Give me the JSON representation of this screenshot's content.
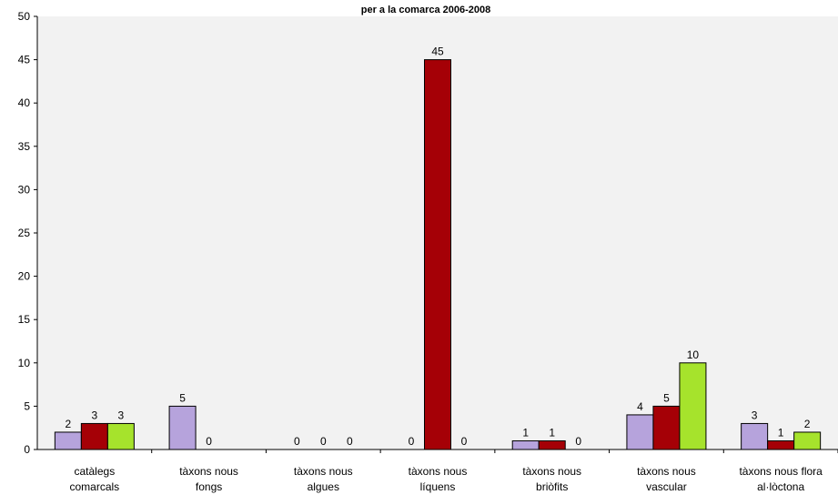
{
  "chart_data": {
    "type": "bar",
    "title": "per a la comarca 2006-2008",
    "xlabel": "",
    "ylabel": "",
    "ylim": [
      0,
      50
    ],
    "yticks": [
      0,
      5,
      10,
      15,
      20,
      25,
      30,
      35,
      40,
      45,
      50
    ],
    "grid": false,
    "legend": "none",
    "categories": [
      [
        "catàlegs",
        "comarcals"
      ],
      [
        "tàxons nous",
        "fongs"
      ],
      [
        "tàxons nous",
        "algues"
      ],
      [
        "tàxons nous",
        "líquens"
      ],
      [
        "tàxons nous",
        "briòfits"
      ],
      [
        "tàxons nous",
        "vascular"
      ],
      [
        "tàxons nous flora",
        "al·lòctona"
      ]
    ],
    "series": [
      {
        "values": [
          2,
          5,
          0,
          0,
          1,
          4,
          3
        ],
        "color": "#b6a3dc"
      },
      {
        "values": [
          3,
          0,
          0,
          45,
          1,
          5,
          1
        ],
        "color": "#a50006"
      },
      {
        "values": [
          3,
          null,
          0,
          0,
          0,
          10,
          2
        ],
        "color": "#a6e32c"
      }
    ]
  }
}
